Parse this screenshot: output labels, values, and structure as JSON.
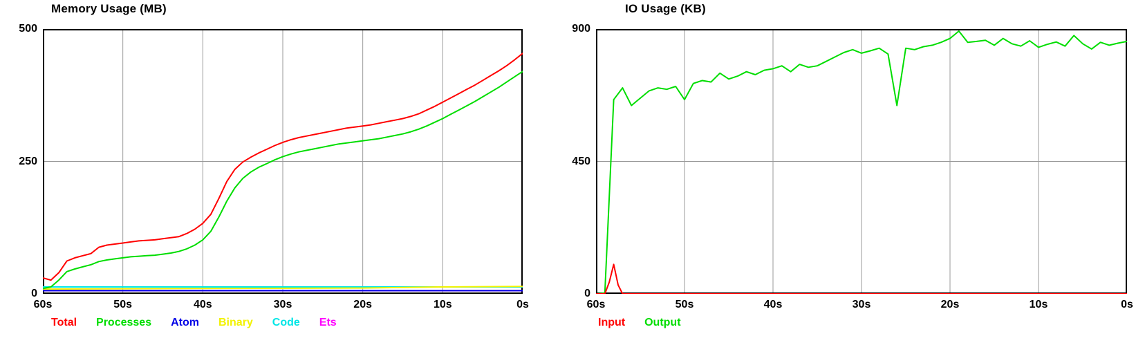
{
  "colors": {
    "background": "#ffffff",
    "grid": "#999999",
    "border": "#000000",
    "text": "#000000"
  },
  "charts": [
    {
      "title": "Memory Usage (MB)",
      "type": "line",
      "ylim": [
        0,
        500
      ],
      "yticks": [
        0,
        250,
        500
      ],
      "ytick_labels": [
        "0",
        "250",
        "500"
      ],
      "x_range": [
        60,
        0
      ],
      "xticks": [
        60,
        50,
        40,
        30,
        20,
        10,
        0
      ],
      "xtick_labels": [
        "60s",
        "50s",
        "40s",
        "30s",
        "20s",
        "10s",
        "0s"
      ],
      "grid_color": "#999999",
      "legend_position": "bottom",
      "series": [
        {
          "name": "Total",
          "color": "#ff0000",
          "values": [
            30,
            26,
            40,
            62,
            68,
            72,
            76,
            88,
            92,
            94,
            96,
            98,
            100,
            101,
            102,
            104,
            106,
            108,
            114,
            122,
            133,
            150,
            180,
            212,
            235,
            249,
            258,
            266,
            273,
            280,
            286,
            291,
            295,
            298,
            301,
            304,
            307,
            310,
            313,
            315,
            317,
            319,
            322,
            325,
            328,
            331,
            335,
            340,
            347,
            354,
            362,
            370,
            378,
            386,
            394,
            403,
            412,
            421,
            431,
            442,
            454
          ]
        },
        {
          "name": "Processes",
          "color": "#00dd00",
          "values": [
            10,
            13,
            26,
            42,
            47,
            51,
            55,
            61,
            64,
            66,
            68,
            70,
            71,
            72,
            73,
            75,
            77,
            80,
            85,
            92,
            102,
            118,
            145,
            175,
            200,
            218,
            230,
            239,
            246,
            253,
            259,
            264,
            268,
            271,
            274,
            277,
            280,
            283,
            285,
            287,
            289,
            291,
            293,
            296,
            299,
            302,
            306,
            311,
            317,
            324,
            331,
            339,
            347,
            355,
            363,
            372,
            381,
            390,
            400,
            410,
            420
          ]
        },
        {
          "name": "Atom",
          "color": "#0000e6",
          "x": [
            60,
            0
          ],
          "values": [
            6,
            6
          ]
        },
        {
          "name": "Binary",
          "color": "#f2f200",
          "x": [
            60,
            40,
            20,
            10,
            0
          ],
          "values": [
            9,
            10,
            11,
            13,
            14
          ]
        },
        {
          "name": "Code",
          "color": "#00e6e6",
          "x": [
            60,
            0
          ],
          "values": [
            13,
            13
          ]
        },
        {
          "name": "Ets",
          "color": "#ff00ff",
          "x": [
            60,
            0
          ],
          "values": [
            6,
            6
          ]
        }
      ]
    },
    {
      "title": "IO Usage (KB)",
      "type": "line",
      "ylim": [
        0,
        900
      ],
      "yticks": [
        0,
        450,
        900
      ],
      "ytick_labels": [
        "0",
        "450",
        "900"
      ],
      "x_range": [
        60,
        0
      ],
      "xticks": [
        60,
        50,
        40,
        30,
        20,
        10,
        0
      ],
      "xtick_labels": [
        "60s",
        "50s",
        "40s",
        "30s",
        "20s",
        "10s",
        "0s"
      ],
      "grid_color": "#999999",
      "legend_position": "bottom",
      "series": [
        {
          "name": "Input",
          "color": "#ff0000",
          "x": [
            60,
            59,
            58.5,
            58,
            57.5,
            57,
            0
          ],
          "values": [
            0,
            0,
            40,
            100,
            30,
            0,
            0
          ]
        },
        {
          "name": "Output",
          "color": "#00dd00",
          "values": [
            0,
            3,
            660,
            700,
            640,
            665,
            690,
            700,
            695,
            705,
            660,
            715,
            725,
            720,
            750,
            730,
            740,
            755,
            745,
            760,
            765,
            775,
            755,
            780,
            770,
            775,
            790,
            805,
            820,
            830,
            818,
            826,
            835,
            815,
            640,
            835,
            830,
            840,
            845,
            855,
            868,
            893,
            855,
            858,
            862,
            845,
            868,
            850,
            842,
            860,
            838,
            848,
            856,
            842,
            878,
            850,
            832,
            855,
            845,
            852,
            858
          ]
        }
      ]
    }
  ]
}
